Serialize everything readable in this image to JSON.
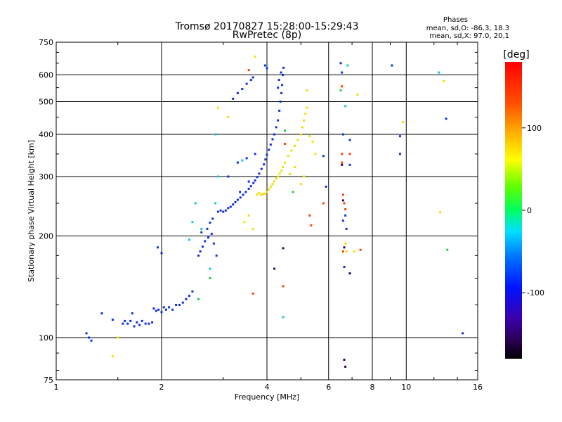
{
  "chart_data": {
    "type": "scatter",
    "title": "Tromsø 20170827 15:28:00-15:29:43",
    "subtitle": "RwPretec (8p)",
    "phase_box": {
      "heading": "Phases",
      "line1": "mean, sd,O: -86.3, 18.3",
      "line2": "mean, sd,X:  97.0, 20.1"
    },
    "xlabel": "Frequency [MHz]",
    "ylabel": "Stationary phase Virtual Height [km]",
    "x_scale": "log",
    "y_scale": "log",
    "xlim": [
      1,
      16
    ],
    "ylim": [
      75,
      750
    ],
    "x_ticks": [
      1,
      2,
      4,
      6,
      8,
      10,
      16
    ],
    "x_tick_labels": [
      "1",
      "2",
      "4",
      "6",
      "8",
      "10",
      "16"
    ],
    "y_ticks": [
      75,
      100,
      200,
      300,
      400,
      500,
      600,
      750
    ],
    "y_tick_labels": [
      "75",
      "100",
      "200",
      "300",
      "400",
      "500",
      "600",
      "750"
    ],
    "grid": true,
    "colorbar": {
      "label": "[deg]",
      "range": [
        -180,
        180
      ],
      "ticks": [
        100,
        0,
        -100
      ],
      "tick_labels": [
        "100",
        "0",
        "-100"
      ]
    },
    "series": [
      {
        "phase": -100,
        "color": "#1030e0",
        "points": [
          [
            1.22,
            103
          ],
          [
            1.24,
            100
          ],
          [
            1.26,
            98
          ],
          [
            1.35,
            118
          ],
          [
            1.45,
            113
          ],
          [
            1.55,
            110
          ],
          [
            1.65,
            118
          ],
          [
            1.57,
            112
          ],
          [
            1.6,
            110
          ],
          [
            1.63,
            112
          ],
          [
            1.67,
            108
          ],
          [
            1.7,
            111
          ],
          [
            1.73,
            109
          ],
          [
            1.76,
            112
          ],
          [
            1.8,
            110
          ],
          [
            1.84,
            110
          ],
          [
            1.88,
            111
          ],
          [
            1.9,
            122
          ],
          [
            1.93,
            120
          ],
          [
            1.96,
            121
          ],
          [
            2.0,
            119
          ],
          [
            2.03,
            123
          ],
          [
            2.06,
            121
          ],
          [
            2.1,
            123
          ],
          [
            2.15,
            121
          ],
          [
            2.2,
            125
          ],
          [
            2.25,
            125
          ],
          [
            2.3,
            127
          ],
          [
            2.35,
            130
          ],
          [
            2.4,
            133
          ],
          [
            2.45,
            137
          ],
          [
            1.95,
            185
          ],
          [
            2.0,
            178
          ],
          [
            2.58,
            180
          ],
          [
            2.62,
            186
          ],
          [
            2.66,
            193
          ],
          [
            2.72,
            198
          ],
          [
            2.78,
            203
          ],
          [
            2.82,
            190
          ],
          [
            2.55,
            175
          ],
          [
            2.6,
            205
          ],
          [
            2.7,
            210
          ],
          [
            2.75,
            219
          ],
          [
            2.8,
            225
          ],
          [
            2.87,
            175
          ],
          [
            2.9,
            236
          ],
          [
            2.95,
            238
          ],
          [
            3.0,
            236
          ],
          [
            3.05,
            238
          ],
          [
            3.1,
            242
          ],
          [
            3.15,
            244
          ],
          [
            3.2,
            248
          ],
          [
            3.25,
            252
          ],
          [
            3.3,
            256
          ],
          [
            3.36,
            260
          ],
          [
            3.42,
            265
          ],
          [
            3.48,
            270
          ],
          [
            3.55,
            276
          ],
          [
            3.6,
            281
          ],
          [
            3.66,
            287
          ],
          [
            3.7,
            292
          ],
          [
            3.75,
            299
          ],
          [
            3.8,
            306
          ],
          [
            3.86,
            316
          ],
          [
            3.92,
            326
          ],
          [
            3.96,
            337
          ],
          [
            4.0,
            348
          ],
          [
            4.05,
            360
          ],
          [
            4.1,
            373
          ],
          [
            4.15,
            387
          ],
          [
            4.2,
            400
          ],
          [
            4.25,
            420
          ],
          [
            4.3,
            440
          ],
          [
            4.34,
            470
          ],
          [
            4.37,
            500
          ],
          [
            4.4,
            530
          ],
          [
            4.42,
            560
          ],
          [
            4.44,
            600
          ],
          [
            4.46,
            630
          ],
          [
            4.3,
            550
          ],
          [
            4.33,
            580
          ],
          [
            4.39,
            610
          ],
          [
            3.2,
            510
          ],
          [
            3.3,
            530
          ],
          [
            3.4,
            545
          ],
          [
            3.5,
            565
          ],
          [
            3.6,
            580
          ],
          [
            3.65,
            590
          ],
          [
            3.95,
            640
          ],
          [
            4.0,
            628
          ],
          [
            3.1,
            300
          ],
          [
            3.3,
            330
          ],
          [
            3.5,
            340
          ],
          [
            3.7,
            350
          ],
          [
            3.35,
            270
          ],
          [
            3.55,
            290
          ],
          [
            6.6,
            400
          ],
          [
            6.9,
            385
          ],
          [
            6.9,
            325
          ],
          [
            6.6,
            222
          ],
          [
            6.7,
            230
          ],
          [
            6.65,
            162
          ],
          [
            6.75,
            210
          ],
          [
            5.8,
            345
          ],
          [
            5.9,
            280
          ],
          [
            6.5,
            650
          ],
          [
            6.55,
            610
          ],
          [
            9.1,
            640
          ],
          [
            9.6,
            350
          ],
          [
            9.6,
            395
          ],
          [
            14.5,
            103
          ],
          [
            13.0,
            445
          ]
        ]
      },
      {
        "phase": 100,
        "color": "#f0e000",
        "points": [
          [
            3.75,
            265
          ],
          [
            3.8,
            268
          ],
          [
            3.85,
            265
          ],
          [
            3.9,
            266
          ],
          [
            3.95,
            267
          ],
          [
            4.0,
            270
          ],
          [
            4.05,
            275
          ],
          [
            4.1,
            280
          ],
          [
            4.15,
            285
          ],
          [
            4.2,
            290
          ],
          [
            4.25,
            296
          ],
          [
            4.3,
            300
          ],
          [
            4.35,
            306
          ],
          [
            4.4,
            312
          ],
          [
            4.45,
            320
          ],
          [
            4.5,
            330
          ],
          [
            4.6,
            345
          ],
          [
            4.7,
            358
          ],
          [
            4.8,
            370
          ],
          [
            4.9,
            385
          ],
          [
            5.0,
            400
          ],
          [
            5.05,
            420
          ],
          [
            5.1,
            440
          ],
          [
            5.15,
            460
          ],
          [
            5.2,
            480
          ],
          [
            5.3,
            395
          ],
          [
            5.4,
            380
          ],
          [
            5.5,
            350
          ],
          [
            5.1,
            300
          ],
          [
            5.0,
            285
          ],
          [
            4.8,
            320
          ],
          [
            4.65,
            305
          ],
          [
            3.55,
            230
          ],
          [
            3.65,
            210
          ],
          [
            3.45,
            220
          ],
          [
            6.7,
            190
          ],
          [
            6.75,
            180
          ],
          [
            7.1,
            180
          ],
          [
            7.25,
            525
          ],
          [
            9.8,
            435
          ],
          [
            12.5,
            235
          ],
          [
            12.8,
            575
          ],
          [
            2.9,
            480
          ],
          [
            3.1,
            450
          ],
          [
            1.45,
            88
          ],
          [
            1.5,
            100
          ],
          [
            3.7,
            680
          ],
          [
            5.2,
            540
          ]
        ]
      },
      {
        "phase": 170,
        "color": "#ff4000",
        "points": [
          [
            3.65,
            135
          ],
          [
            4.45,
            142
          ],
          [
            6.55,
            330
          ],
          [
            6.6,
            265
          ],
          [
            6.65,
            250
          ],
          [
            6.7,
            240
          ],
          [
            6.6,
            180
          ],
          [
            6.55,
            350
          ],
          [
            6.9,
            350
          ],
          [
            5.3,
            230
          ],
          [
            5.35,
            215
          ],
          [
            4.5,
            375
          ],
          [
            7.4,
            182
          ],
          [
            6.55,
            555
          ],
          [
            5.8,
            250
          ],
          [
            3.55,
            620
          ]
        ]
      },
      {
        "phase": 40,
        "color": "#20d040",
        "points": [
          [
            2.55,
            130
          ],
          [
            4.5,
            410
          ],
          [
            4.75,
            270
          ],
          [
            2.75,
            150
          ],
          [
            6.5,
            540
          ],
          [
            13.1,
            182
          ]
        ]
      },
      {
        "phase": -40,
        "color": "#10c8e0",
        "points": [
          [
            2.9,
            300
          ],
          [
            2.85,
            400
          ],
          [
            2.75,
            160
          ],
          [
            2.6,
            210
          ],
          [
            2.5,
            250
          ],
          [
            2.45,
            220
          ],
          [
            2.4,
            195
          ],
          [
            3.4,
            335
          ],
          [
            4.45,
            115
          ],
          [
            6.8,
            640
          ],
          [
            12.4,
            610
          ],
          [
            6.7,
            485
          ],
          [
            2.85,
            250
          ]
        ]
      },
      {
        "phase": -160,
        "color": "#300060",
        "points": [
          [
            6.65,
            86
          ],
          [
            6.7,
            82
          ],
          [
            6.65,
            185
          ],
          [
            6.9,
            155
          ],
          [
            4.45,
            184
          ],
          [
            4.2,
            160
          ],
          [
            6.6,
            255
          ],
          [
            6.55,
            325
          ]
        ]
      }
    ]
  }
}
